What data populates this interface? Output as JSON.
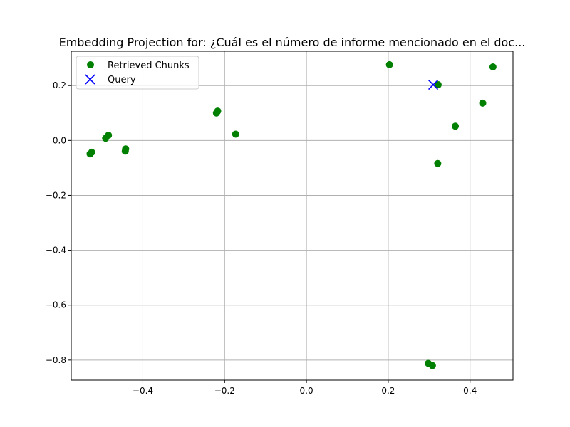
{
  "chart_data": {
    "type": "scatter",
    "title": "Embedding Projection for: ¿Cuál es el número de informe mencionado en el doc...",
    "xlabel": "",
    "ylabel": "",
    "xlim": [
      -0.575,
      0.505
    ],
    "ylim": [
      -0.873,
      0.325
    ],
    "grid": true,
    "legend_position": "top-left",
    "x_ticks": [
      -0.4,
      -0.2,
      0.0,
      0.2,
      0.4
    ],
    "x_tick_labels": [
      "−0.4",
      "−0.2",
      "0.0",
      "0.2",
      "0.4"
    ],
    "y_ticks": [
      0.2,
      0.0,
      -0.2,
      -0.4,
      -0.6,
      -0.8
    ],
    "y_tick_labels": [
      "0.2",
      "0.0",
      "−0.2",
      "−0.4",
      "−0.6",
      "−0.8"
    ],
    "series": [
      {
        "name": "Retrieved Chunks",
        "marker": "circle",
        "color": "#008000",
        "points": [
          {
            "x": 0.203,
            "y": 0.276
          },
          {
            "x": 0.456,
            "y": 0.268
          },
          {
            "x": 0.322,
            "y": 0.203
          },
          {
            "x": 0.431,
            "y": 0.136
          },
          {
            "x": -0.217,
            "y": 0.107
          },
          {
            "x": -0.22,
            "y": 0.1
          },
          {
            "x": 0.364,
            "y": 0.052
          },
          {
            "x": -0.173,
            "y": 0.023
          },
          {
            "x": -0.484,
            "y": 0.019
          },
          {
            "x": -0.491,
            "y": 0.008
          },
          {
            "x": -0.442,
            "y": -0.031
          },
          {
            "x": -0.443,
            "y": -0.039
          },
          {
            "x": -0.525,
            "y": -0.043
          },
          {
            "x": -0.529,
            "y": -0.049
          },
          {
            "x": 0.321,
            "y": -0.084
          },
          {
            "x": 0.298,
            "y": -0.812
          },
          {
            "x": 0.308,
            "y": -0.82
          }
        ]
      },
      {
        "name": "Query",
        "marker": "x",
        "color": "#0000ff",
        "points": [
          {
            "x": 0.31,
            "y": 0.203
          }
        ]
      }
    ]
  }
}
